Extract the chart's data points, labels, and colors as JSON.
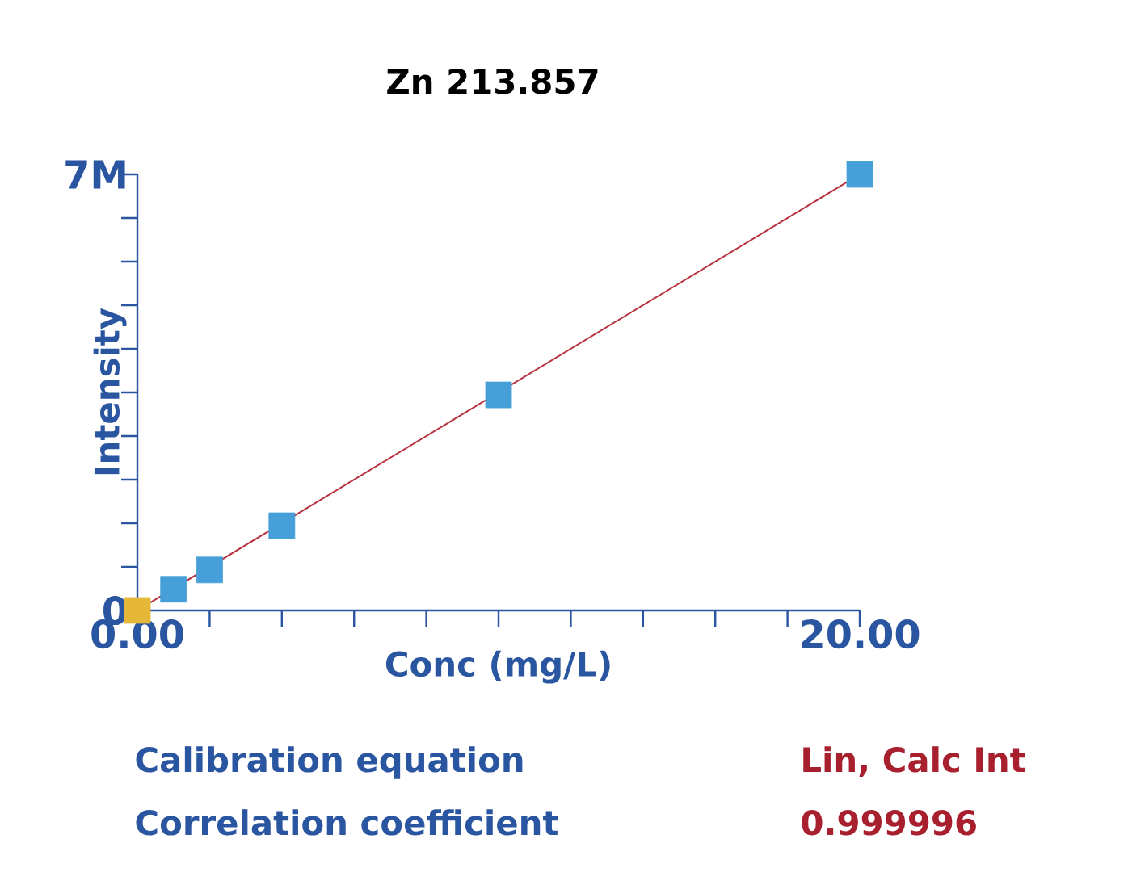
{
  "chart_data": {
    "type": "scatter",
    "title": "Zn 213.857",
    "xlabel": "Conc (mg/L)",
    "ylabel": "Intensity",
    "x": [
      0,
      1,
      2,
      4,
      10,
      20
    ],
    "series": [
      {
        "type": "line",
        "color": "#b8323f",
        "x": [
          0,
          20
        ],
        "values": [
          0,
          7000000
        ],
        "marker": "none",
        "line_style": "solid"
      },
      {
        "marker": "square",
        "colors": [
          "#e6b83a",
          "#469fd9",
          "#469fd9",
          "#469fd9",
          "#469fd9",
          "#469fd9"
        ],
        "values": [
          0,
          340000,
          650000,
          1360000,
          3460000,
          7000000
        ]
      }
    ],
    "xlim": [
      0,
      20
    ],
    "ylim": [
      0,
      7000000
    ],
    "xticks": [
      {
        "value": 0,
        "label": "0.00"
      },
      {
        "value": 2,
        "label": null
      },
      {
        "value": 4,
        "label": null
      },
      {
        "value": 6,
        "label": null
      },
      {
        "value": 8,
        "label": null
      },
      {
        "value": 10,
        "label": null
      },
      {
        "value": 12,
        "label": null
      },
      {
        "value": 14,
        "label": null
      },
      {
        "value": 16,
        "label": null
      },
      {
        "value": 18,
        "label": null
      },
      {
        "value": 20,
        "label": "20.00"
      }
    ],
    "yticks": [
      {
        "value": 0,
        "label": "0"
      },
      {
        "value": 700000,
        "label": null
      },
      {
        "value": 1400000,
        "label": null
      },
      {
        "value": 2100000,
        "label": null
      },
      {
        "value": 2800000,
        "label": null
      },
      {
        "value": 3500000,
        "label": null
      },
      {
        "value": 4200000,
        "label": null
      },
      {
        "value": 4900000,
        "label": null
      },
      {
        "value": 5600000,
        "label": null
      },
      {
        "value": 6300000,
        "label": null
      },
      {
        "value": 7000000,
        "label": "7M"
      }
    ],
    "annotations": [
      "Calibration equation",
      "Lin, Calc Int",
      "Correlation coefficient",
      "0.999996"
    ]
  }
}
